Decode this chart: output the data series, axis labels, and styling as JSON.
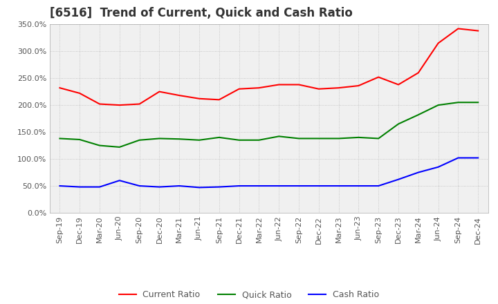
{
  "title": "[6516]  Trend of Current, Quick and Cash Ratio",
  "x_labels": [
    "Sep-19",
    "Dec-19",
    "Mar-20",
    "Jun-20",
    "Sep-20",
    "Dec-20",
    "Mar-21",
    "Jun-21",
    "Sep-21",
    "Dec-21",
    "Mar-22",
    "Jun-22",
    "Sep-22",
    "Dec-22",
    "Mar-23",
    "Jun-23",
    "Sep-23",
    "Dec-23",
    "Mar-24",
    "Jun-24",
    "Sep-24",
    "Dec-24"
  ],
  "current_ratio": [
    2.32,
    2.22,
    2.02,
    2.0,
    2.02,
    2.25,
    2.18,
    2.12,
    2.1,
    2.3,
    2.32,
    2.38,
    2.38,
    2.3,
    2.32,
    2.36,
    2.52,
    2.38,
    2.6,
    3.15,
    3.42,
    3.38
  ],
  "quick_ratio": [
    1.38,
    1.36,
    1.25,
    1.22,
    1.35,
    1.38,
    1.37,
    1.35,
    1.4,
    1.35,
    1.35,
    1.42,
    1.38,
    1.38,
    1.38,
    1.4,
    1.38,
    1.65,
    1.82,
    2.0,
    2.05,
    2.05
  ],
  "cash_ratio": [
    0.5,
    0.48,
    0.48,
    0.6,
    0.5,
    0.48,
    0.5,
    0.47,
    0.48,
    0.5,
    0.5,
    0.5,
    0.5,
    0.5,
    0.5,
    0.5,
    0.5,
    0.62,
    0.75,
    0.85,
    1.02,
    1.02
  ],
  "current_color": "#FF0000",
  "quick_color": "#008000",
  "cash_color": "#0000FF",
  "ylim": [
    0.0,
    3.5
  ],
  "yticks": [
    0.0,
    0.5,
    1.0,
    1.5,
    2.0,
    2.5,
    3.0,
    3.5
  ],
  "background_color": "#ffffff",
  "plot_bg_color": "#f0f0f0",
  "grid_color": "#bbbbbb",
  "title_fontsize": 12,
  "axis_fontsize": 8,
  "legend_fontsize": 9
}
